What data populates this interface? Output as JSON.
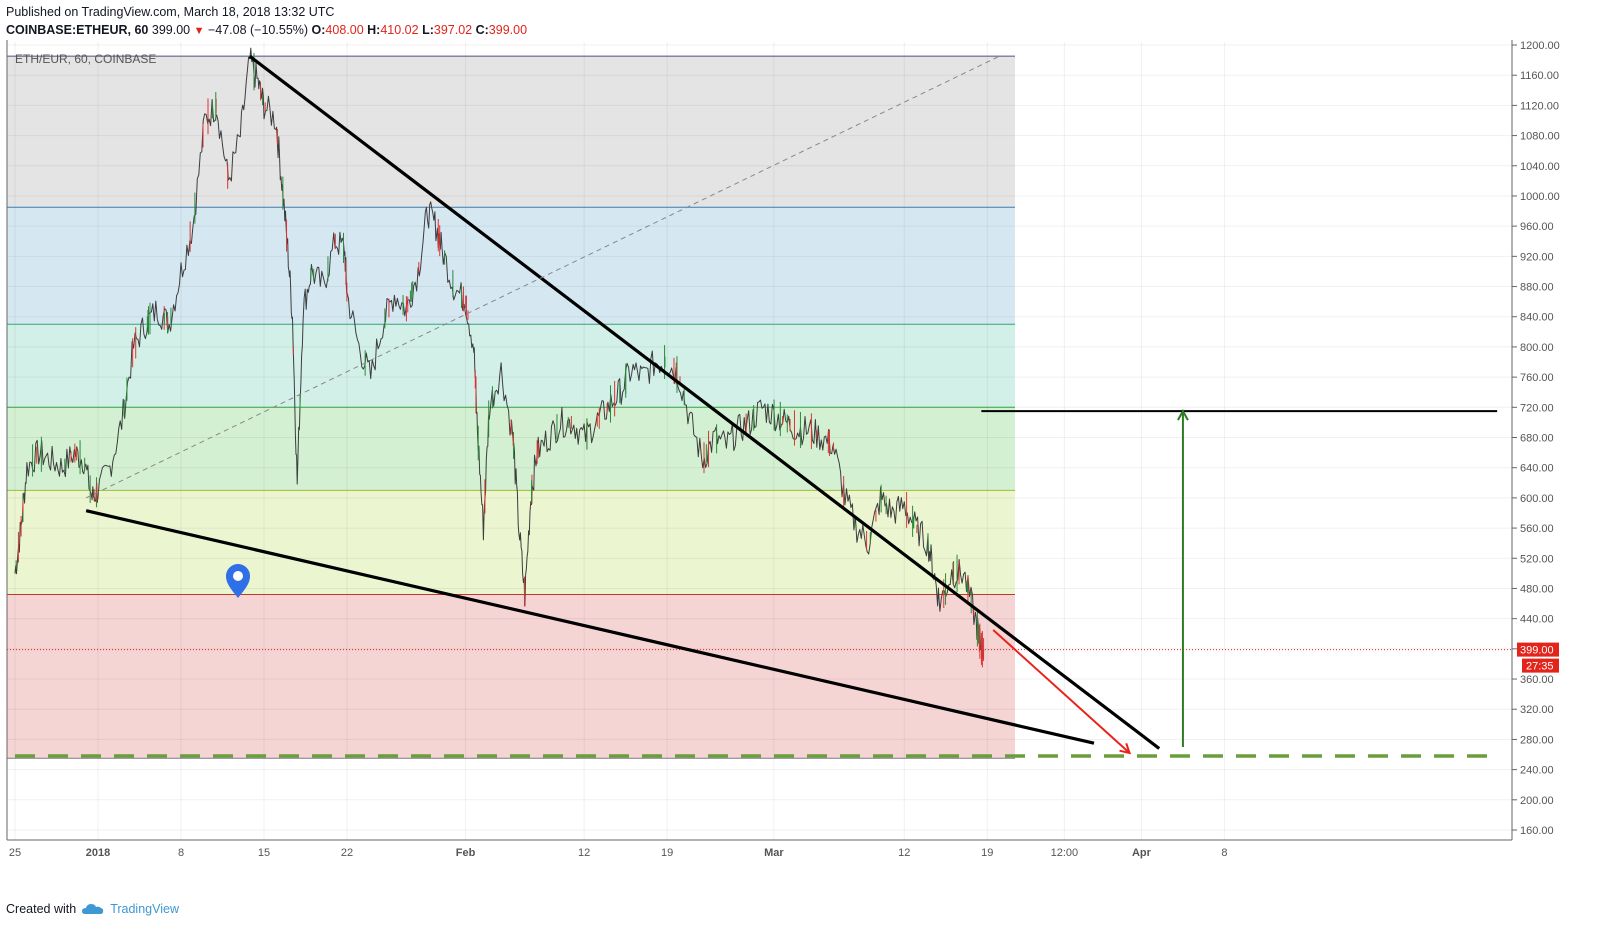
{
  "header": {
    "published": "Published on TradingView.com, March 18, 2018 13:32 UTC",
    "symbol": "COINBASE:ETHEUR, 60",
    "last": "399.00",
    "change": "−47.08 (−10.55%)",
    "o_label": "O:",
    "o": "408.00",
    "h_label": "H:",
    "h": "410.02",
    "l_label": "L:",
    "l": "397.02",
    "c_label": "C:",
    "c": "399.00"
  },
  "chart_data": {
    "type": "line",
    "title": "ETH/EUR, 60, COINBASE",
    "ylim": [
      140,
      1210
    ],
    "y_ticks": [
      1200,
      1160,
      1120,
      1080,
      1040,
      1000,
      960,
      920,
      880,
      840,
      800,
      760,
      720,
      680,
      640,
      600,
      560,
      520,
      480,
      440,
      400,
      360,
      320,
      280,
      240,
      200,
      160
    ],
    "y_tick_labels": [
      "1200.00",
      "1160.00",
      "1120.00",
      "1080.00",
      "1040.00",
      "1000.00",
      "960.00",
      "920.00",
      "880.00",
      "840.00",
      "800.00",
      "760.00",
      "720.00",
      "680.00",
      "640.00",
      "600.00",
      "560.00",
      "520.00",
      "480.00",
      "440.00",
      "400.00",
      "360.00",
      "320.00",
      "280.00",
      "240.00",
      "200.00",
      "160.00"
    ],
    "x_tick_labels": [
      {
        "label": "25",
        "d": 0
      },
      {
        "label": "2018",
        "d": 7,
        "bold": true
      },
      {
        "label": "8",
        "d": 14
      },
      {
        "label": "15",
        "d": 21
      },
      {
        "label": "22",
        "d": 28
      },
      {
        "label": "Feb",
        "d": 38,
        "bold": true
      },
      {
        "label": "12",
        "d": 48
      },
      {
        "label": "19",
        "d": 55
      },
      {
        "label": "Mar",
        "d": 64,
        "bold": true
      },
      {
        "label": "12",
        "d": 75
      },
      {
        "label": "19",
        "d": 82
      },
      {
        "label": "12:00",
        "d": 88.5
      },
      {
        "label": "Apr",
        "d": 95,
        "bold": true
      },
      {
        "label": "8",
        "d": 102
      }
    ],
    "price_series": [
      [
        0,
        500
      ],
      [
        0.5,
        560
      ],
      [
        1,
        640
      ],
      [
        2,
        660
      ],
      [
        3,
        650
      ],
      [
        4,
        640
      ],
      [
        5,
        660
      ],
      [
        5.8,
        650
      ],
      [
        6.5,
        600
      ],
      [
        7,
        610
      ],
      [
        8,
        640
      ],
      [
        9,
        700
      ],
      [
        10,
        800
      ],
      [
        11,
        830
      ],
      [
        12,
        850
      ],
      [
        13,
        830
      ],
      [
        14,
        900
      ],
      [
        15,
        960
      ],
      [
        16,
        1100
      ],
      [
        17,
        1120
      ],
      [
        18,
        1020
      ],
      [
        19,
        1080
      ],
      [
        19.8,
        1180
      ],
      [
        20.5,
        1150
      ],
      [
        21,
        1120
      ],
      [
        22,
        1100
      ],
      [
        22.5,
        1020
      ],
      [
        23,
        930
      ],
      [
        23.4,
        840
      ],
      [
        23.8,
        620
      ],
      [
        24.3,
        850
      ],
      [
        25,
        900
      ],
      [
        26,
        880
      ],
      [
        27,
        940
      ],
      [
        27.8,
        930
      ],
      [
        28,
        870
      ],
      [
        29,
        800
      ],
      [
        30,
        760
      ],
      [
        31,
        830
      ],
      [
        32,
        870
      ],
      [
        33,
        850
      ],
      [
        34,
        900
      ],
      [
        34.8,
        980
      ],
      [
        35.5,
        960
      ],
      [
        36,
        930
      ],
      [
        37,
        880
      ],
      [
        38,
        860
      ],
      [
        38.7,
        800
      ],
      [
        39,
        690
      ],
      [
        39.5,
        560
      ],
      [
        40,
        720
      ],
      [
        41,
        770
      ],
      [
        42,
        680
      ],
      [
        42.5,
        560
      ],
      [
        43,
        470
      ],
      [
        43.5,
        600
      ],
      [
        44,
        660
      ],
      [
        45,
        680
      ],
      [
        46,
        700
      ],
      [
        47,
        700
      ],
      [
        48,
        680
      ],
      [
        49,
        700
      ],
      [
        50,
        720
      ],
      [
        51,
        740
      ],
      [
        52,
        770
      ],
      [
        53,
        760
      ],
      [
        54,
        780
      ],
      [
        55,
        780
      ],
      [
        56,
        760
      ],
      [
        57,
        700
      ],
      [
        58,
        650
      ],
      [
        59,
        680
      ],
      [
        60,
        670
      ],
      [
        61,
        690
      ],
      [
        62,
        700
      ],
      [
        63,
        720
      ],
      [
        64,
        710
      ],
      [
        65,
        700
      ],
      [
        66,
        690
      ],
      [
        67,
        690
      ],
      [
        68,
        680
      ],
      [
        69,
        670
      ],
      [
        70,
        600
      ],
      [
        71,
        560
      ],
      [
        72,
        540
      ],
      [
        73,
        600
      ],
      [
        74,
        580
      ],
      [
        75,
        590
      ],
      [
        76,
        560
      ],
      [
        77,
        540
      ],
      [
        77.5,
        500
      ],
      [
        78,
        460
      ],
      [
        79,
        500
      ],
      [
        80,
        500
      ],
      [
        81,
        440
      ],
      [
        81.5,
        400
      ],
      [
        81.7,
        399
      ]
    ],
    "last_price": 399.0,
    "countdown": "27:35",
    "fib_levels": [
      1185,
      985,
      830,
      720,
      610,
      472,
      255
    ],
    "zones": [
      {
        "from": 985,
        "to": 1185,
        "color": "#e4e4e4"
      },
      {
        "from": 830,
        "to": 985,
        "color": "#d5e8f2"
      },
      {
        "from": 720,
        "to": 830,
        "color": "#d2f0e8"
      },
      {
        "from": 610,
        "to": 720,
        "color": "#d4f0d2"
      },
      {
        "from": 472,
        "to": 610,
        "color": "#ebf5d0"
      },
      {
        "from": 255,
        "to": 472,
        "color": "#f5d4d4"
      },
      {
        "from": 1185,
        "to": 1200,
        "color": "#c9c8ef"
      }
    ],
    "annotations": [
      {
        "kind": "trendline",
        "from": [
          19.8,
          1185
        ],
        "to": [
          96.5,
          268
        ],
        "color": "#000000"
      },
      {
        "kind": "trendline",
        "from": [
          6,
          583
        ],
        "to": [
          91,
          275
        ],
        "color": "#000000"
      },
      {
        "kind": "hline",
        "y": 715,
        "from": 81.5,
        "to": 125,
        "color": "#000000"
      },
      {
        "kind": "dashed",
        "y": 258,
        "from": 0,
        "to": 125,
        "color": "#6a9d3c"
      },
      {
        "kind": "arrow",
        "from": [
          82.5,
          425
        ],
        "to": [
          94,
          262
        ],
        "color": "#e8231a"
      },
      {
        "kind": "arrow",
        "from": [
          98.5,
          270
        ],
        "to": [
          98.5,
          715
        ],
        "color": "#2f7a25"
      },
      {
        "kind": "diagonal",
        "from": [
          6,
          600
        ],
        "to": [
          83,
          1185
        ],
        "color": "#888888"
      }
    ]
  },
  "footer": {
    "created_with": "Created with",
    "brand": "TradingView"
  }
}
